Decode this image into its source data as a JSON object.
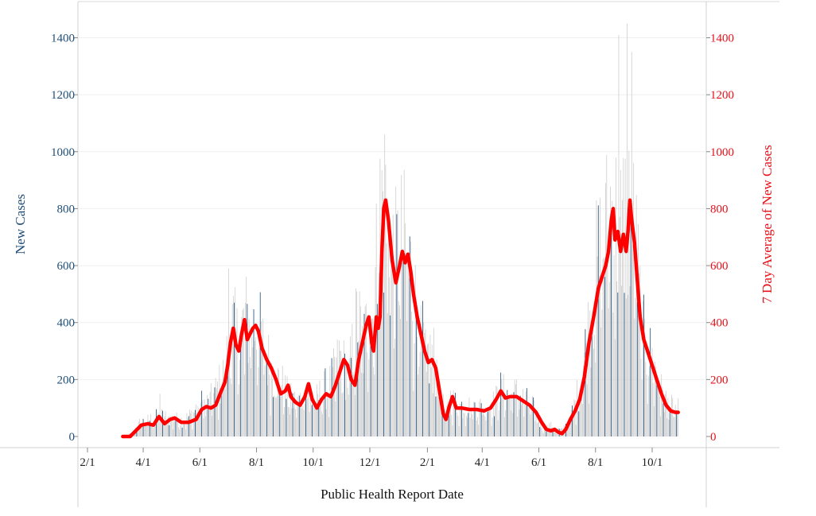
{
  "chart_data": {
    "type": "bar+line",
    "xlabel": "Public Health Report Date",
    "ylabel_left": "New Cases",
    "ylabel_right": "7 Day Average of New Cases",
    "ylim": [
      0,
      1500
    ],
    "yticks": [
      0,
      200,
      400,
      600,
      800,
      1000,
      1200,
      1400
    ],
    "x_ticks": [
      {
        "label": "2/1",
        "date": "2020-02-01"
      },
      {
        "label": "4/1",
        "date": "2020-04-01"
      },
      {
        "label": "6/1",
        "date": "2020-06-01"
      },
      {
        "label": "8/1",
        "date": "2020-08-01"
      },
      {
        "label": "10/1",
        "date": "2020-10-01"
      },
      {
        "label": "12/1",
        "date": "2020-12-01"
      },
      {
        "label": "2/1",
        "date": "2021-02-01"
      },
      {
        "label": "4/1",
        "date": "2021-04-01"
      },
      {
        "label": "6/1",
        "date": "2021-06-01"
      },
      {
        "label": "8/1",
        "date": "2021-08-01"
      },
      {
        "label": "10/1",
        "date": "2021-10-01"
      }
    ],
    "x_range": [
      "2020-01-20",
      "2021-11-06"
    ],
    "grid": true,
    "colors": {
      "bars_gray": "#cfcfcf",
      "bars_blue": "#1f4e79",
      "avg_line": "#ff0000",
      "left_axis": "#1f4e79",
      "right_axis": "#e8101a"
    },
    "series": [
      {
        "name": "New Cases",
        "kind": "bar",
        "start": "2020-03-10",
        "end": "2021-10-29",
        "keypoints": [
          [
            "2020-03-10",
            0
          ],
          [
            "2020-03-20",
            10
          ],
          [
            "2020-03-28",
            45
          ],
          [
            "2020-04-10",
            60
          ],
          [
            "2020-04-20",
            70
          ],
          [
            "2020-05-01",
            60
          ],
          [
            "2020-05-15",
            55
          ],
          [
            "2020-05-25",
            80
          ],
          [
            "2020-06-01",
            115
          ],
          [
            "2020-06-10",
            110
          ],
          [
            "2020-06-20",
            160
          ],
          [
            "2020-06-28",
            220
          ],
          [
            "2020-07-05",
            390
          ],
          [
            "2020-07-12",
            320
          ],
          [
            "2020-07-20",
            400
          ],
          [
            "2020-07-27",
            360
          ],
          [
            "2020-08-01",
            390
          ],
          [
            "2020-08-08",
            310
          ],
          [
            "2020-08-18",
            220
          ],
          [
            "2020-08-28",
            180
          ],
          [
            "2020-09-05",
            130
          ],
          [
            "2020-09-15",
            110
          ],
          [
            "2020-09-22",
            170
          ],
          [
            "2020-10-01",
            110
          ],
          [
            "2020-10-10",
            150
          ],
          [
            "2020-10-20",
            180
          ],
          [
            "2020-10-30",
            270
          ],
          [
            "2020-11-08",
            200
          ],
          [
            "2020-11-18",
            410
          ],
          [
            "2020-11-24",
            300
          ],
          [
            "2020-11-30",
            430
          ],
          [
            "2020-12-05",
            400
          ],
          [
            "2020-12-10",
            700
          ],
          [
            "2020-12-14",
            810
          ],
          [
            "2020-12-20",
            680
          ],
          [
            "2020-12-28",
            580
          ],
          [
            "2021-01-05",
            650
          ],
          [
            "2021-01-12",
            600
          ],
          [
            "2021-01-20",
            420
          ],
          [
            "2021-01-30",
            280
          ],
          [
            "2021-02-08",
            270
          ],
          [
            "2021-02-15",
            170
          ],
          [
            "2021-02-20",
            60
          ],
          [
            "2021-02-26",
            130
          ],
          [
            "2021-03-05",
            105
          ],
          [
            "2021-03-20",
            100
          ],
          [
            "2021-04-05",
            100
          ],
          [
            "2021-04-15",
            115
          ],
          [
            "2021-04-20",
            160
          ],
          [
            "2021-04-28",
            140
          ],
          [
            "2021-05-08",
            145
          ],
          [
            "2021-05-25",
            100
          ],
          [
            "2021-06-05",
            30
          ],
          [
            "2021-06-15",
            35
          ],
          [
            "2021-06-25",
            20
          ],
          [
            "2021-07-05",
            60
          ],
          [
            "2021-07-15",
            170
          ],
          [
            "2021-07-25",
            370
          ],
          [
            "2021-08-01",
            550
          ],
          [
            "2021-08-10",
            650
          ],
          [
            "2021-08-18",
            780
          ],
          [
            "2021-08-25",
            700
          ],
          [
            "2021-09-01",
            730
          ],
          [
            "2021-09-07",
            780
          ],
          [
            "2021-09-14",
            620
          ],
          [
            "2021-09-20",
            350
          ],
          [
            "2021-09-28",
            280
          ],
          [
            "2021-10-05",
            220
          ],
          [
            "2021-10-12",
            140
          ],
          [
            "2021-10-20",
            100
          ],
          [
            "2021-10-29",
            90
          ]
        ],
        "noted_values": [
          [
            "2020-04-19",
            150
          ],
          [
            "2020-07-02",
            590
          ],
          [
            "2020-12-17",
            1060
          ],
          [
            "2021-08-26",
            1410
          ],
          [
            "2021-09-04",
            1450
          ],
          [
            "2021-09-09",
            1350
          ]
        ]
      },
      {
        "name": "7 Day Average of New Cases",
        "kind": "line",
        "points": [
          [
            "2020-03-10",
            0
          ],
          [
            "2020-03-18",
            0
          ],
          [
            "2020-03-24",
            20
          ],
          [
            "2020-03-30",
            40
          ],
          [
            "2020-04-06",
            45
          ],
          [
            "2020-04-12",
            40
          ],
          [
            "2020-04-18",
            70
          ],
          [
            "2020-04-24",
            45
          ],
          [
            "2020-04-30",
            60
          ],
          [
            "2020-05-05",
            65
          ],
          [
            "2020-05-12",
            50
          ],
          [
            "2020-05-20",
            50
          ],
          [
            "2020-05-28",
            60
          ],
          [
            "2020-06-03",
            95
          ],
          [
            "2020-06-08",
            105
          ],
          [
            "2020-06-13",
            100
          ],
          [
            "2020-06-18",
            110
          ],
          [
            "2020-06-24",
            160
          ],
          [
            "2020-06-28",
            190
          ],
          [
            "2020-07-01",
            250
          ],
          [
            "2020-07-04",
            330
          ],
          [
            "2020-07-07",
            380
          ],
          [
            "2020-07-10",
            320
          ],
          [
            "2020-07-13",
            300
          ],
          [
            "2020-07-16",
            360
          ],
          [
            "2020-07-19",
            410
          ],
          [
            "2020-07-22",
            340
          ],
          [
            "2020-07-25",
            360
          ],
          [
            "2020-07-28",
            380
          ],
          [
            "2020-07-31",
            390
          ],
          [
            "2020-08-03",
            370
          ],
          [
            "2020-08-07",
            310
          ],
          [
            "2020-08-12",
            270
          ],
          [
            "2020-08-17",
            240
          ],
          [
            "2020-08-22",
            200
          ],
          [
            "2020-08-27",
            150
          ],
          [
            "2020-09-01",
            160
          ],
          [
            "2020-09-04",
            180
          ],
          [
            "2020-09-07",
            140
          ],
          [
            "2020-09-12",
            120
          ],
          [
            "2020-09-17",
            110
          ],
          [
            "2020-09-22",
            140
          ],
          [
            "2020-09-26",
            185
          ],
          [
            "2020-09-30",
            130
          ],
          [
            "2020-10-05",
            100
          ],
          [
            "2020-10-10",
            130
          ],
          [
            "2020-10-15",
            150
          ],
          [
            "2020-10-20",
            140
          ],
          [
            "2020-10-25",
            180
          ],
          [
            "2020-10-30",
            230
          ],
          [
            "2020-11-03",
            270
          ],
          [
            "2020-11-07",
            250
          ],
          [
            "2020-11-11",
            200
          ],
          [
            "2020-11-15",
            180
          ],
          [
            "2020-11-19",
            270
          ],
          [
            "2020-11-23",
            330
          ],
          [
            "2020-11-27",
            390
          ],
          [
            "2020-11-30",
            420
          ],
          [
            "2020-12-03",
            330
          ],
          [
            "2020-12-05",
            300
          ],
          [
            "2020-12-08",
            420
          ],
          [
            "2020-12-10",
            380
          ],
          [
            "2020-12-12",
            420
          ],
          [
            "2020-12-14",
            650
          ],
          [
            "2020-12-16",
            800
          ],
          [
            "2020-12-18",
            830
          ],
          [
            "2020-12-21",
            760
          ],
          [
            "2020-12-25",
            620
          ],
          [
            "2020-12-29",
            540
          ],
          [
            "2021-01-02",
            600
          ],
          [
            "2021-01-05",
            650
          ],
          [
            "2021-01-08",
            610
          ],
          [
            "2021-01-11",
            640
          ],
          [
            "2021-01-14",
            580
          ],
          [
            "2021-01-17",
            500
          ],
          [
            "2021-01-21",
            420
          ],
          [
            "2021-01-25",
            360
          ],
          [
            "2021-01-29",
            300
          ],
          [
            "2021-02-02",
            260
          ],
          [
            "2021-02-06",
            270
          ],
          [
            "2021-02-10",
            240
          ],
          [
            "2021-02-14",
            160
          ],
          [
            "2021-02-18",
            80
          ],
          [
            "2021-02-21",
            60
          ],
          [
            "2021-02-24",
            100
          ],
          [
            "2021-02-28",
            140
          ],
          [
            "2021-03-04",
            100
          ],
          [
            "2021-03-10",
            100
          ],
          [
            "2021-03-18",
            95
          ],
          [
            "2021-03-26",
            95
          ],
          [
            "2021-04-03",
            90
          ],
          [
            "2021-04-10",
            100
          ],
          [
            "2021-04-16",
            130
          ],
          [
            "2021-04-21",
            160
          ],
          [
            "2021-04-26",
            135
          ],
          [
            "2021-05-01",
            140
          ],
          [
            "2021-05-08",
            140
          ],
          [
            "2021-05-15",
            125
          ],
          [
            "2021-05-22",
            110
          ],
          [
            "2021-05-29",
            85
          ],
          [
            "2021-06-04",
            50
          ],
          [
            "2021-06-09",
            25
          ],
          [
            "2021-06-14",
            20
          ],
          [
            "2021-06-18",
            25
          ],
          [
            "2021-06-22",
            15
          ],
          [
            "2021-06-26",
            10
          ],
          [
            "2021-06-30",
            25
          ],
          [
            "2021-07-05",
            60
          ],
          [
            "2021-07-10",
            90
          ],
          [
            "2021-07-15",
            130
          ],
          [
            "2021-07-20",
            210
          ],
          [
            "2021-07-25",
            330
          ],
          [
            "2021-07-30",
            420
          ],
          [
            "2021-08-04",
            520
          ],
          [
            "2021-08-08",
            560
          ],
          [
            "2021-08-12",
            600
          ],
          [
            "2021-08-15",
            650
          ],
          [
            "2021-08-18",
            760
          ],
          [
            "2021-08-20",
            800
          ],
          [
            "2021-08-22",
            690
          ],
          [
            "2021-08-25",
            720
          ],
          [
            "2021-08-28",
            650
          ],
          [
            "2021-08-31",
            710
          ],
          [
            "2021-09-03",
            650
          ],
          [
            "2021-09-05",
            720
          ],
          [
            "2021-09-07",
            830
          ],
          [
            "2021-09-09",
            760
          ],
          [
            "2021-09-12",
            680
          ],
          [
            "2021-09-15",
            550
          ],
          [
            "2021-09-18",
            420
          ],
          [
            "2021-09-22",
            340
          ],
          [
            "2021-09-26",
            300
          ],
          [
            "2021-10-01",
            250
          ],
          [
            "2021-10-06",
            200
          ],
          [
            "2021-10-11",
            150
          ],
          [
            "2021-10-16",
            110
          ],
          [
            "2021-10-21",
            90
          ],
          [
            "2021-10-26",
            85
          ],
          [
            "2021-10-29",
            85
          ]
        ]
      }
    ]
  }
}
